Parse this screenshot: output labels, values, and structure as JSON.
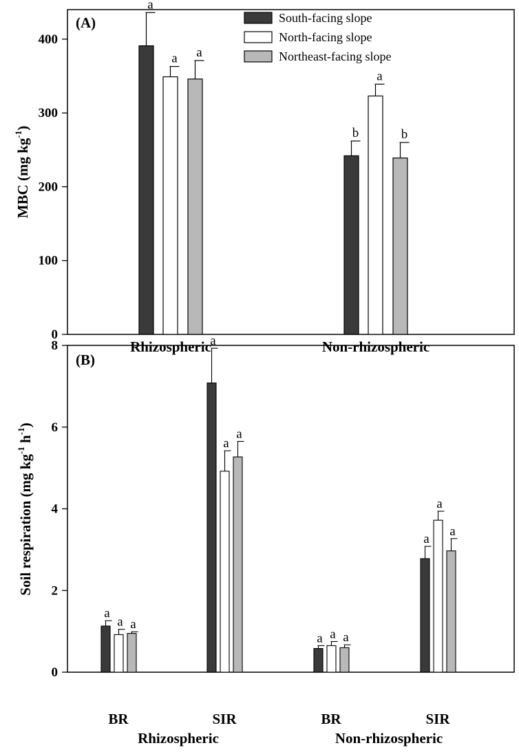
{
  "legend": [
    {
      "name": "South-facing slope",
      "color": "#3a3a3a"
    },
    {
      "name": "North-facing slope",
      "color": "#ffffff"
    },
    {
      "name": "Northeast-facing slope",
      "color": "#b8b8b8"
    }
  ],
  "chart_data": [
    {
      "type": "bar",
      "panel": "(A)",
      "ylabel": "MBC (mg kg-1)",
      "ylim": [
        0,
        440
      ],
      "yticks": [
        0,
        100,
        200,
        300,
        400
      ],
      "groups": [
        "Rhizospheric",
        "Non-rhizospheric"
      ],
      "categories": [
        "Rhizospheric",
        "Non-rhizospheric"
      ],
      "series": [
        {
          "name": "South-facing slope",
          "values": [
            391,
            242
          ],
          "errors": [
            45,
            20
          ],
          "letters": [
            "a",
            "b"
          ]
        },
        {
          "name": "North-facing slope",
          "values": [
            349,
            323
          ],
          "errors": [
            14,
            16
          ],
          "letters": [
            "a",
            "a"
          ]
        },
        {
          "name": "Northeast-facing slope",
          "values": [
            346,
            239
          ],
          "errors": [
            25,
            21
          ],
          "letters": [
            "a",
            "b"
          ]
        }
      ],
      "legend_position": "top"
    },
    {
      "type": "bar",
      "panel": "(B)",
      "ylabel": "Soil respiration (mg kg-1 h-1)",
      "ylim": [
        0,
        8
      ],
      "yticks": [
        0,
        2,
        4,
        6,
        8
      ],
      "categories": [
        "BR",
        "SIR",
        "BR",
        "SIR"
      ],
      "groups": [
        "Rhizospheric",
        "Non-rhizospheric"
      ],
      "series": [
        {
          "name": "South-facing slope",
          "values": [
            1.13,
            7.08,
            0.58,
            2.78
          ],
          "errors": [
            0.13,
            0.85,
            0.07,
            0.3
          ],
          "letters": [
            "a",
            "a",
            "a",
            "a"
          ]
        },
        {
          "name": "North-facing slope",
          "values": [
            0.92,
            4.92,
            0.65,
            3.72
          ],
          "errors": [
            0.13,
            0.5,
            0.1,
            0.22
          ],
          "letters": [
            "a",
            "a",
            "a",
            "a"
          ]
        },
        {
          "name": "Northeast-facing slope",
          "values": [
            0.95,
            5.27,
            0.6,
            2.97
          ],
          "errors": [
            0.04,
            0.38,
            0.07,
            0.3
          ],
          "letters": [
            "a",
            "a",
            "a",
            "a"
          ]
        }
      ]
    }
  ]
}
